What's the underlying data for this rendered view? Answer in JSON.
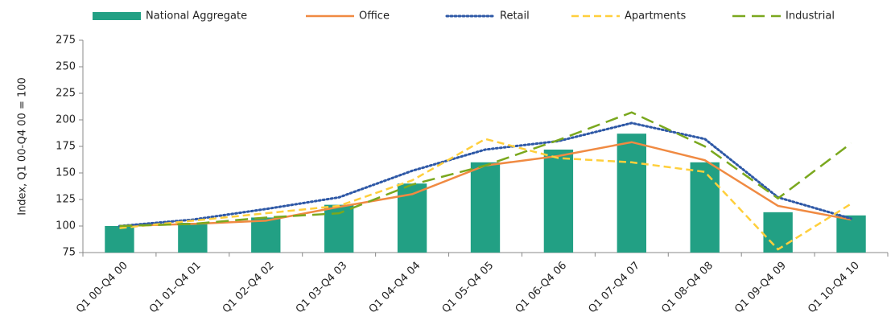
{
  "chart_data": {
    "type": "bar",
    "y_label": "Index, Q1 00-Q4 00 = 100",
    "categories": [
      "Q1 00-Q4 00",
      "Q1 01-Q4 01",
      "Q1 02-Q4 02",
      "Q1 03-Q4 03",
      "Q1 04-Q4 04",
      "Q1 05-Q4 05",
      "Q1 06-Q4 06",
      "Q1 07-Q4 07",
      "Q1 08-Q4 08",
      "Q1 09-Q4 09",
      "Q1 10-Q4 10"
    ],
    "series": [
      {
        "name": "National Aggregate",
        "type": "bar",
        "color": "#22a084",
        "values": [
          100,
          103,
          108,
          120,
          140,
          160,
          172,
          187,
          160,
          113,
          110
        ]
      },
      {
        "name": "Office",
        "type": "line",
        "dash": "solid",
        "color": "#f08a42",
        "values": [
          100,
          102,
          105,
          118,
          130,
          157,
          166,
          179,
          162,
          119,
          106
        ]
      },
      {
        "name": "Retail",
        "type": "line",
        "dash": "dotted",
        "color": "#2e58a6",
        "values": [
          100,
          106,
          116,
          127,
          152,
          172,
          180,
          197,
          182,
          127,
          107
        ]
      },
      {
        "name": "Apartments",
        "type": "line",
        "dash": "dashed",
        "color": "#ffcf3c",
        "values": [
          98,
          105,
          112,
          119,
          143,
          182,
          164,
          160,
          151,
          78,
          121
        ]
      },
      {
        "name": "Industrial",
        "type": "line",
        "dash": "longdash",
        "color": "#7aa81e",
        "values": [
          100,
          102,
          108,
          112,
          139,
          157,
          181,
          207,
          175,
          126,
          178
        ]
      }
    ],
    "ylim": [
      75,
      275
    ],
    "yticks": [
      75,
      100,
      125,
      150,
      175,
      200,
      225,
      250,
      275
    ],
    "grid": false
  }
}
